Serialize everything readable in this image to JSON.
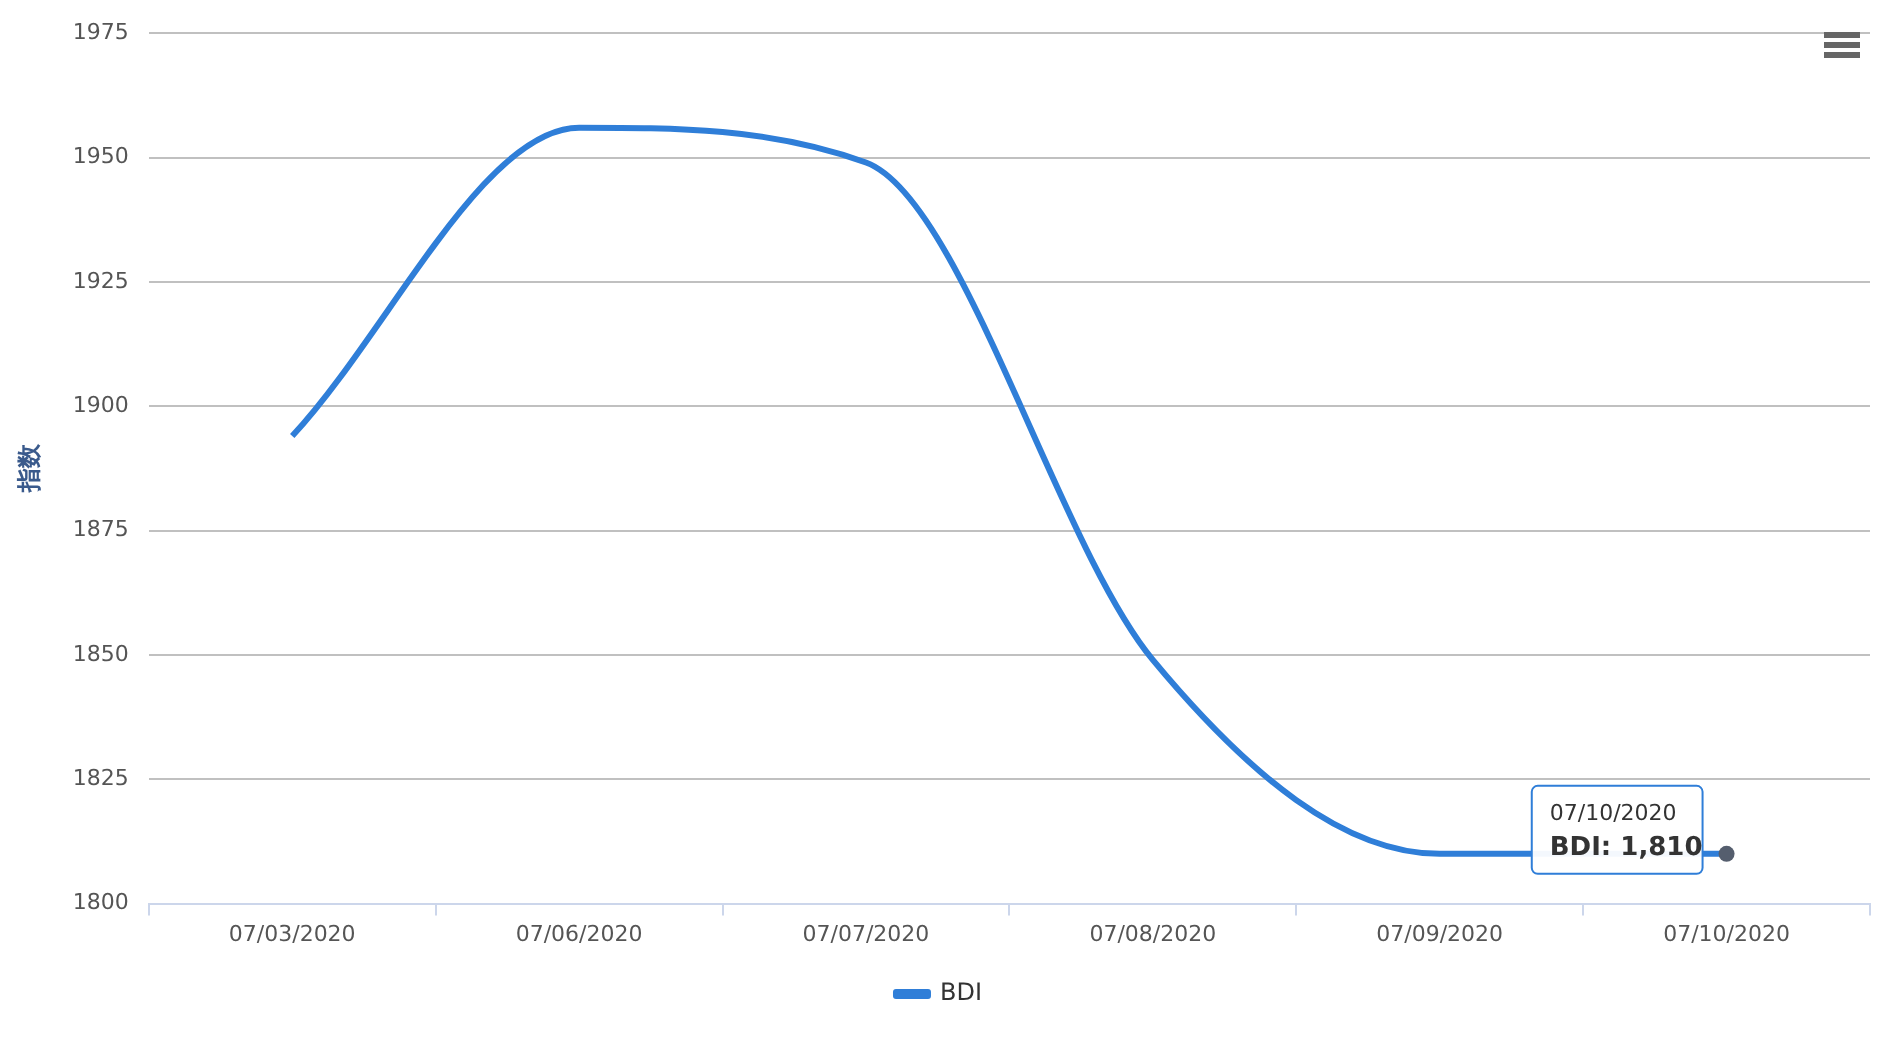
{
  "chart_data": {
    "type": "line",
    "ylabel": "指数",
    "categories": [
      "07/03/2020",
      "07/06/2020",
      "07/07/2020",
      "07/08/2020",
      "07/09/2020",
      "07/10/2020"
    ],
    "series": [
      {
        "name": "BDI",
        "color": "#2f7ed8",
        "values": [
          1894,
          1956,
          1949,
          1849,
          1810,
          1810
        ]
      }
    ],
    "ylim": [
      1800,
      1975
    ],
    "yticks": [
      1800,
      1825,
      1850,
      1875,
      1900,
      1925,
      1950,
      1975
    ],
    "grid": "y",
    "legend": "bottom",
    "marker": "none",
    "line_style": "solid",
    "annotations": [
      {
        "text": "07/10/2020\nBDI: 1,810",
        "x": "07/10/2020",
        "y": 1810
      }
    ]
  }
}
